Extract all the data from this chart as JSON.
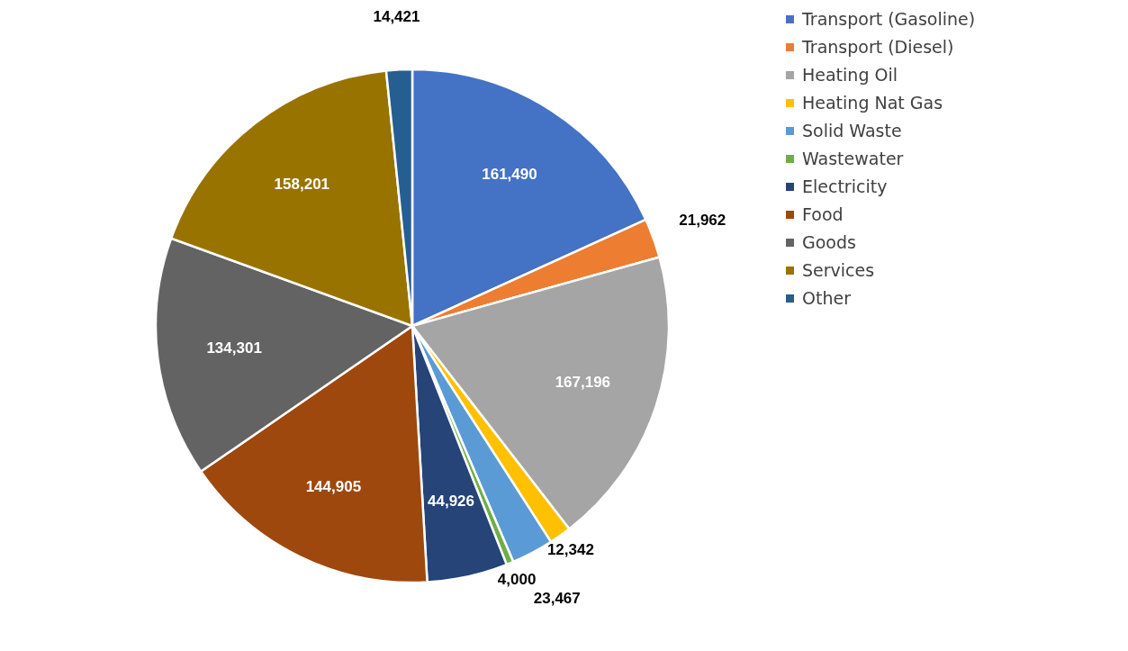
{
  "chart_data": {
    "type": "pie",
    "categories": [
      "Transport (Gasoline)",
      "Transport (Diesel)",
      "Heating Oil",
      "Heating Nat Gas",
      "Solid Waste",
      "Wastewater",
      "Electricity",
      "Food",
      "Goods",
      "Services",
      "Other"
    ],
    "values": [
      161490,
      21962,
      167196,
      12342,
      23467,
      4000,
      44926,
      144905,
      134301,
      158201,
      14421
    ],
    "colors": [
      "#4472c4",
      "#ed7d31",
      "#a5a5a5",
      "#ffc000",
      "#5b9bd5",
      "#70ad47",
      "#264478",
      "#9e480e",
      "#636363",
      "#997300",
      "#255e91"
    ],
    "value_labels": [
      "161,490",
      "21,962",
      "167,196",
      "12,342",
      "23,467",
      "4,000",
      "44,926",
      "144,905",
      "134,301",
      "158,201",
      "14,421"
    ],
    "legend": "right"
  }
}
